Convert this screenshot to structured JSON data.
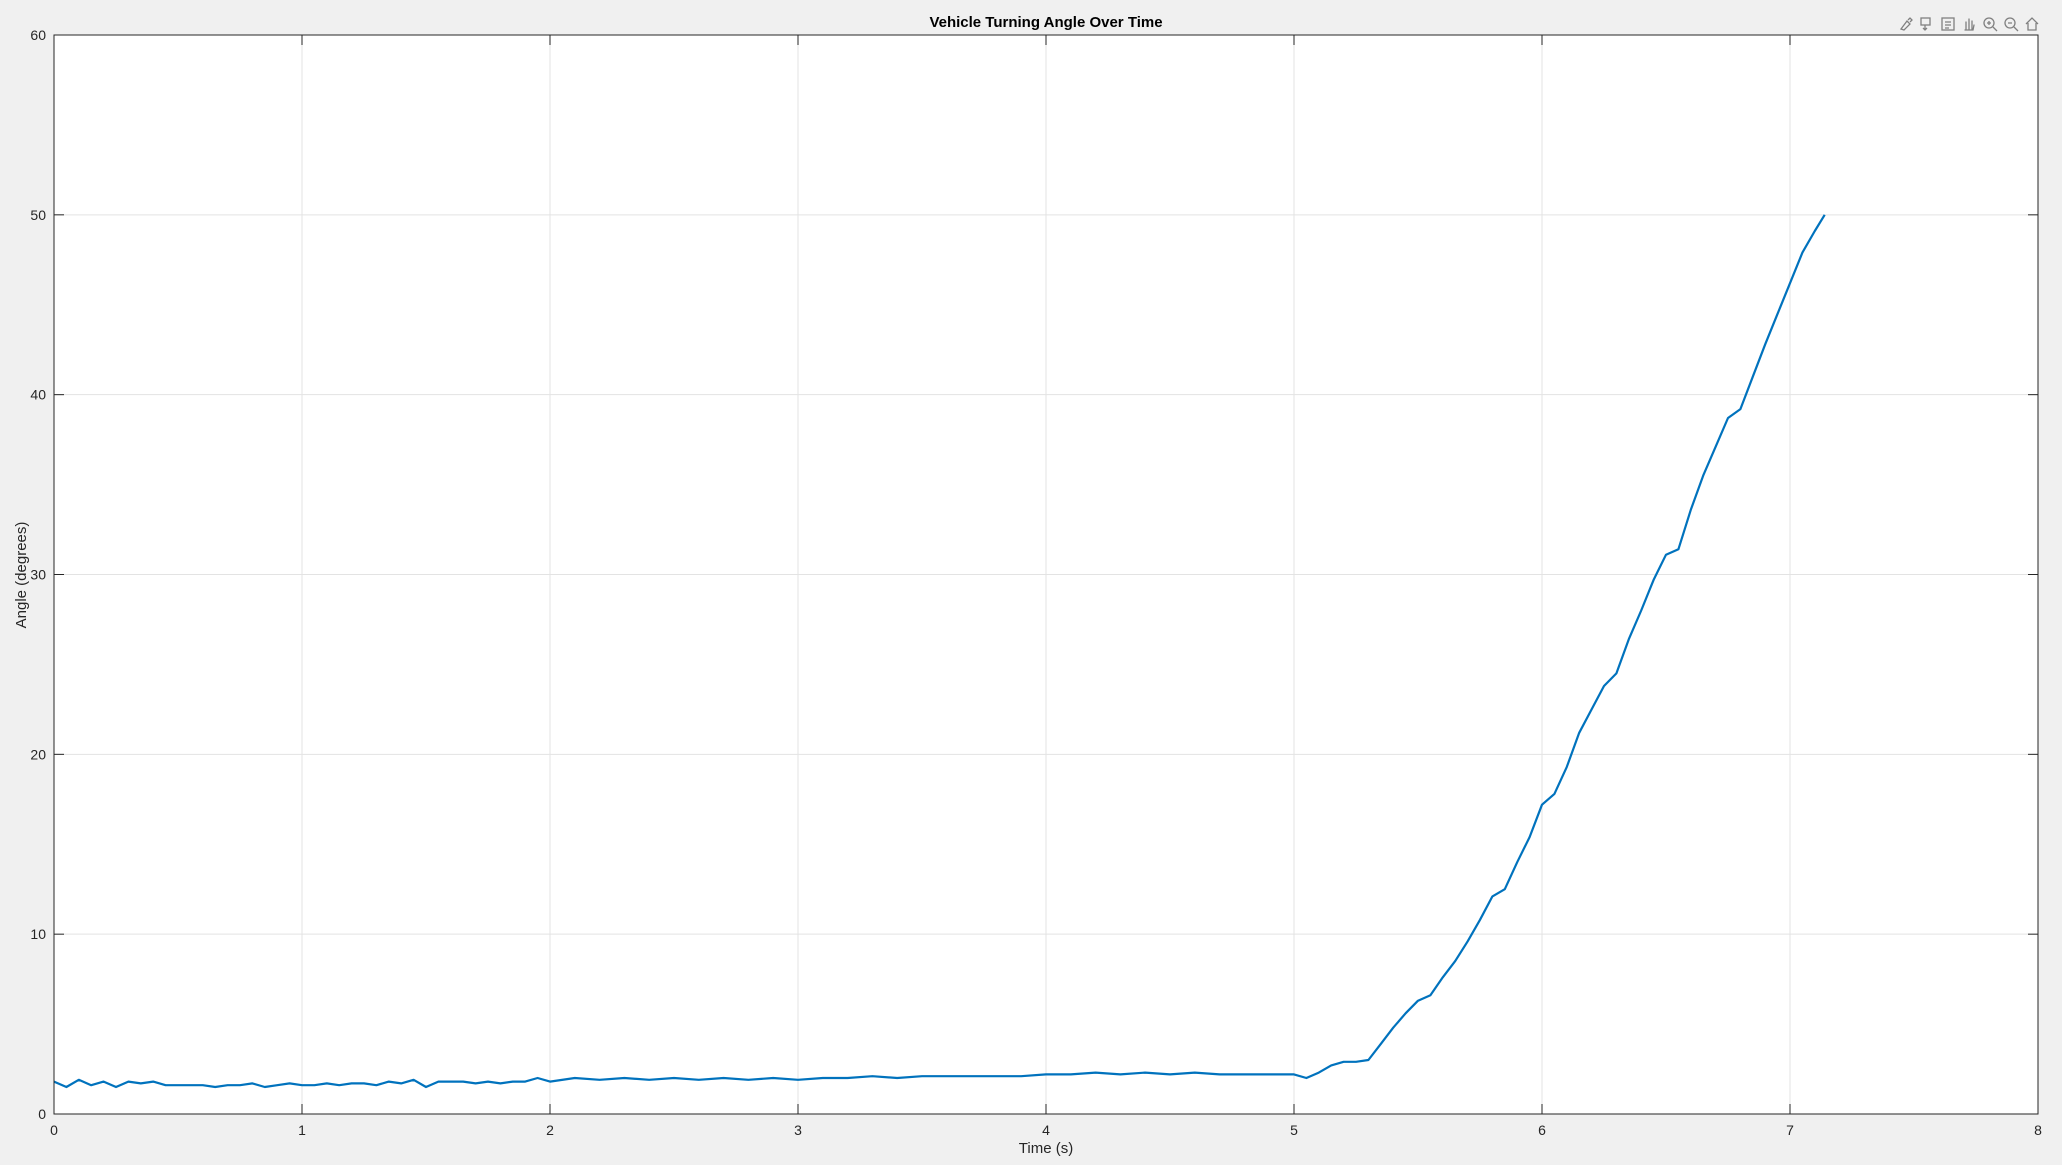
{
  "toolbar": {
    "icons": [
      "brush-icon",
      "data-tips-icon",
      "edit-icon",
      "pan-icon",
      "zoom-in-icon",
      "zoom-out-icon",
      "home-icon"
    ]
  },
  "chart_data": {
    "type": "line",
    "title": "Vehicle Turning Angle Over Time",
    "xlabel": "Time (s)",
    "ylabel": "Angle (degrees)",
    "xlim": [
      0,
      8
    ],
    "ylim": [
      0,
      60
    ],
    "xticks": [
      0,
      1,
      2,
      3,
      4,
      5,
      6,
      7,
      8
    ],
    "yticks": [
      0,
      10,
      20,
      30,
      40,
      50,
      60
    ],
    "grid": true,
    "line_color": "#0072BD",
    "series": [
      {
        "x": [
          0,
          0.05,
          0.1,
          0.15,
          0.2,
          0.25,
          0.3,
          0.35,
          0.4,
          0.45,
          0.5,
          0.55,
          0.6,
          0.65,
          0.7,
          0.75,
          0.8,
          0.85,
          0.9,
          0.95,
          1.0,
          1.05,
          1.1,
          1.15,
          1.2,
          1.25,
          1.3,
          1.35,
          1.4,
          1.45,
          1.5,
          1.55,
          1.6,
          1.65,
          1.7,
          1.75,
          1.8,
          1.85,
          1.9,
          1.95,
          2.0,
          2.1,
          2.2,
          2.3,
          2.4,
          2.5,
          2.6,
          2.7,
          2.8,
          2.9,
          3.0,
          3.1,
          3.2,
          3.3,
          3.4,
          3.5,
          3.6,
          3.7,
          3.8,
          3.9,
          4.0,
          4.1,
          4.2,
          4.3,
          4.4,
          4.5,
          4.6,
          4.7,
          4.8,
          4.9,
          5.0,
          5.05,
          5.1,
          5.15,
          5.2,
          5.25,
          5.3,
          5.35,
          5.4,
          5.45,
          5.5,
          5.55,
          5.6,
          5.65,
          5.7,
          5.75,
          5.8,
          5.85,
          5.9,
          5.95,
          6.0,
          6.05,
          6.1,
          6.15,
          6.2,
          6.25,
          6.3,
          6.35,
          6.4,
          6.45,
          6.5,
          6.55,
          6.6,
          6.65,
          6.7,
          6.75,
          6.8,
          6.85,
          6.9,
          6.95,
          7.0,
          7.05,
          7.1,
          7.14
        ],
        "values": [
          1.8,
          1.5,
          1.9,
          1.6,
          1.8,
          1.5,
          1.8,
          1.7,
          1.8,
          1.6,
          1.6,
          1.6,
          1.6,
          1.5,
          1.6,
          1.6,
          1.7,
          1.5,
          1.6,
          1.7,
          1.6,
          1.6,
          1.7,
          1.6,
          1.7,
          1.7,
          1.6,
          1.8,
          1.7,
          1.9,
          1.5,
          1.8,
          1.8,
          1.8,
          1.7,
          1.8,
          1.7,
          1.8,
          1.8,
          2.0,
          1.8,
          2.0,
          1.9,
          2.0,
          1.9,
          2.0,
          1.9,
          2.0,
          1.9,
          2.0,
          1.9,
          2.0,
          2.0,
          2.1,
          2.0,
          2.1,
          2.1,
          2.1,
          2.1,
          2.1,
          2.2,
          2.2,
          2.3,
          2.2,
          2.3,
          2.2,
          2.3,
          2.2,
          2.2,
          2.2,
          2.2,
          2.0,
          2.3,
          2.7,
          2.9,
          2.9,
          3.0,
          3.9,
          4.8,
          5.6,
          6.3,
          6.6,
          7.6,
          8.5,
          9.6,
          10.8,
          12.1,
          12.5,
          14.0,
          15.4,
          17.2,
          17.8,
          19.3,
          21.2,
          22.5,
          23.8,
          24.5,
          26.4,
          28.0,
          29.7,
          31.1,
          31.4,
          33.6,
          35.5,
          37.1,
          38.7,
          39.2,
          41.0,
          42.8,
          44.5,
          46.2,
          47.9,
          49.1,
          50.0
        ]
      }
    ]
  }
}
